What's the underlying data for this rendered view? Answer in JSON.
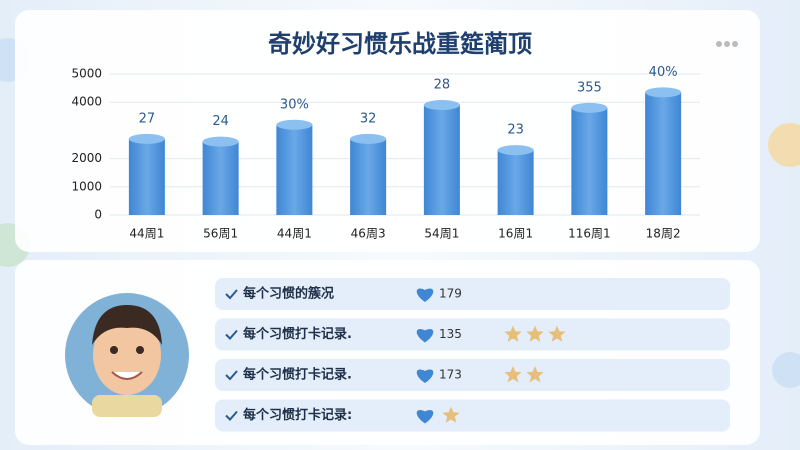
{
  "chart_data": {
    "type": "bar",
    "title": "奇妙好习惯乐战重筵蔺顶",
    "categories": [
      "44周1",
      "56周1",
      "44周1",
      "46周3",
      "54周1",
      "16周1",
      "116周1",
      "18周2"
    ],
    "values": [
      2700,
      2600,
      3200,
      2700,
      3900,
      2300,
      3800,
      4350
    ],
    "annotations": [
      "27",
      "24",
      "30%",
      "32",
      "28",
      "23",
      "355",
      "40%"
    ],
    "color": "#4a90d9",
    "ylim": [
      0,
      5000
    ],
    "yticks": [
      0,
      1000,
      2000,
      4000,
      5000
    ],
    "grid": true
  },
  "list": {
    "rows": [
      {
        "text": "每个习惯的簇况",
        "count": "179",
        "stars": 0
      },
      {
        "text": "每个习惯打卡记录.",
        "count": "135",
        "stars": 3
      },
      {
        "text": "每个习惯打卡记录.",
        "count": "173",
        "stars": 2
      },
      {
        "text": "每个习惯打卡记录:",
        "count": null,
        "stars": 1
      }
    ]
  }
}
